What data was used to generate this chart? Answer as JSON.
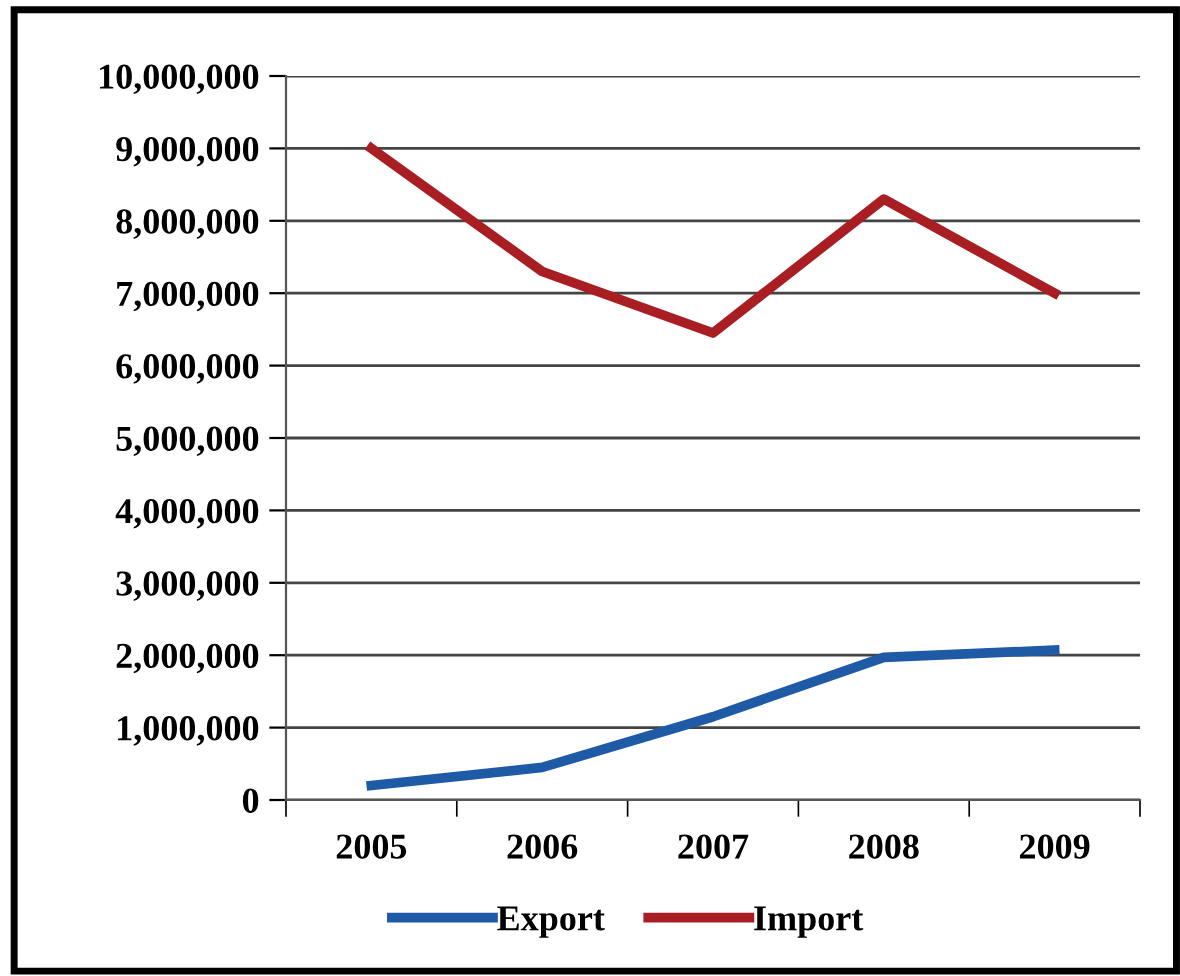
{
  "chart_data": {
    "type": "line",
    "categories": [
      "2005",
      "2006",
      "2007",
      "2008",
      "2009"
    ],
    "series": [
      {
        "name": "Export",
        "color": "#1f5aa6",
        "values": [
          200000,
          450000,
          1150000,
          1970000,
          2070000
        ]
      },
      {
        "name": "Import",
        "color": "#a81e22",
        "values": [
          9000000,
          7300000,
          6450000,
          8300000,
          7000000
        ]
      }
    ],
    "ylim": [
      0,
      10000000
    ],
    "yticks": [
      {
        "value": 0,
        "label": "0"
      },
      {
        "value": 1000000,
        "label": "1,000,000"
      },
      {
        "value": 2000000,
        "label": "2,000,000"
      },
      {
        "value": 3000000,
        "label": "3,000,000"
      },
      {
        "value": 4000000,
        "label": "4,000,000"
      },
      {
        "value": 5000000,
        "label": "5,000,000"
      },
      {
        "value": 6000000,
        "label": "6,000,000"
      },
      {
        "value": 7000000,
        "label": "7,000,000"
      },
      {
        "value": 8000000,
        "label": "8,000,000"
      },
      {
        "value": 9000000,
        "label": "9,000,000"
      },
      {
        "value": 10000000,
        "label": "10,000,000"
      }
    ],
    "grid": "y",
    "legend": "bottom",
    "marker": "none",
    "line_style": "solid"
  }
}
